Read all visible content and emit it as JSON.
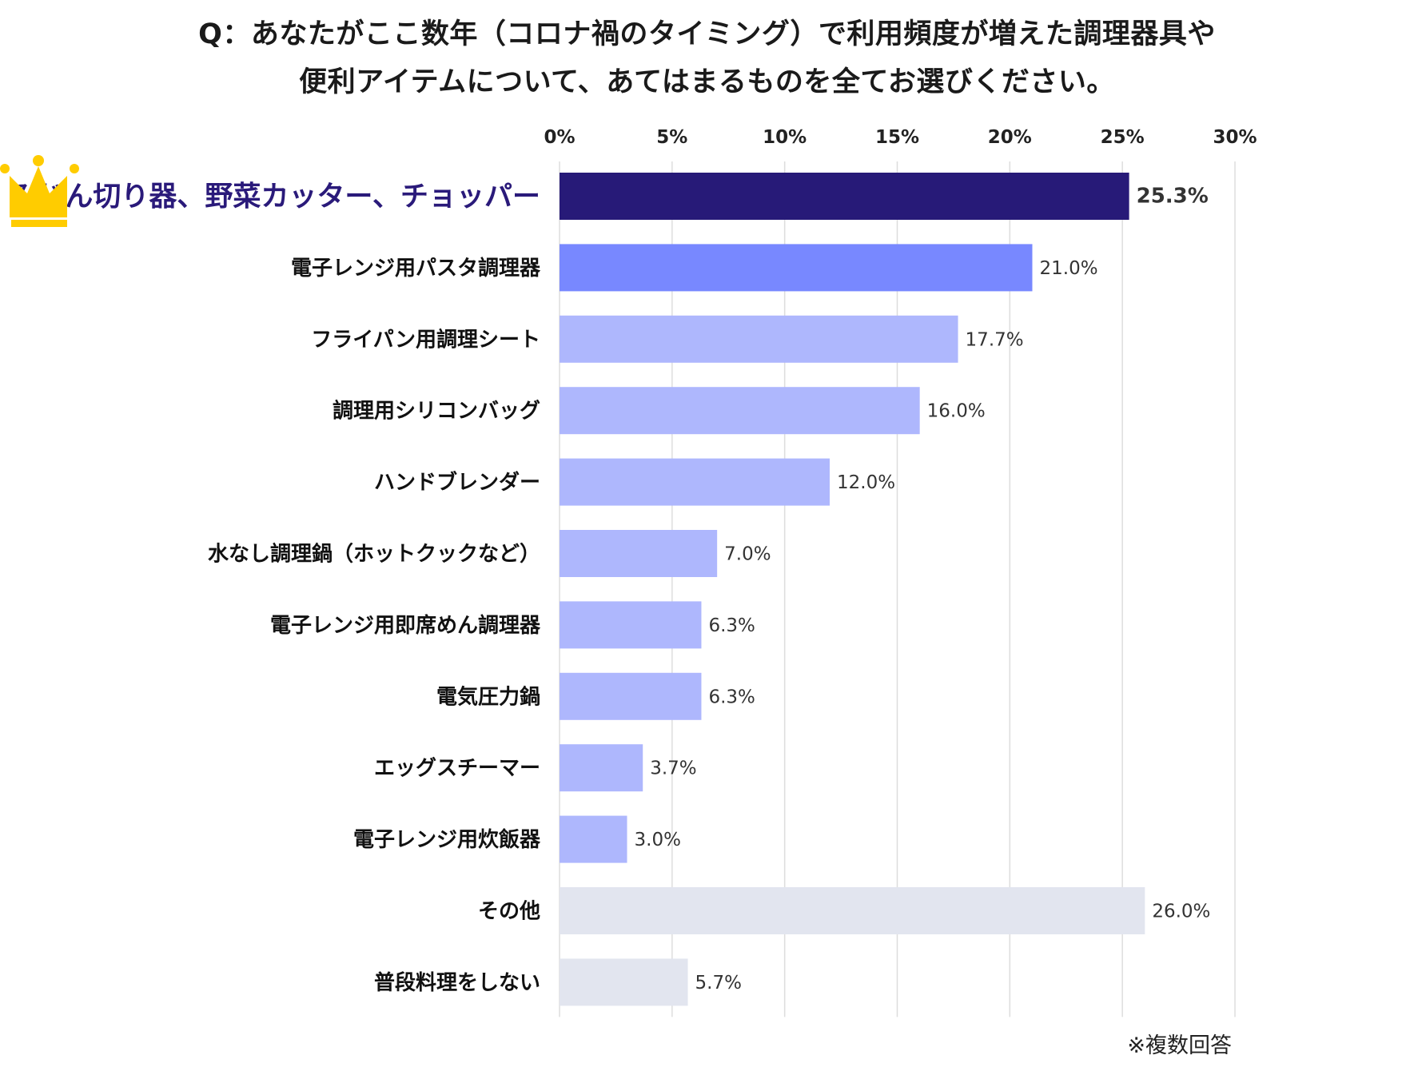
{
  "title_line1": "Q：あなたがここ数年（コロナ禍のタイミング）で利用頻度が増えた調理器具や",
  "title_line2": "便利アイテムについて、あてはまるものを全てお選びください。",
  "note": "※複数回答",
  "colors": {
    "top": "#271a78",
    "second": "#7888ff",
    "regular": "#aeb7fd",
    "other": "#e2e5ef",
    "grid": "#dddddd",
    "crown": "#ffcc00",
    "top_label": "#2a1a7a"
  },
  "chart_data": {
    "type": "bar",
    "orientation": "horizontal",
    "xlim": [
      0,
      30
    ],
    "xticks": [
      0,
      5,
      10,
      15,
      20,
      25,
      30
    ],
    "tick_labels": [
      "0%",
      "5%",
      "10%",
      "15%",
      "20%",
      "25%",
      "30%"
    ],
    "tick_label_position": "top",
    "grid": true,
    "categories": [
      "みじん切り器、野菜カッター、チョッパー",
      "電子レンジ用パスタ調理器",
      "フライパン用調理シート",
      "調理用シリコンバッグ",
      "ハンドブレンダー",
      "水なし調理鍋（ホットクックなど）",
      "電子レンジ用即席めん調理器",
      "電気圧力鍋",
      "エッグスチーマー",
      "電子レンジ用炊飯器",
      "その他",
      "普段料理をしない"
    ],
    "values": [
      25.3,
      21.0,
      17.7,
      16.0,
      12.0,
      7.0,
      6.3,
      6.3,
      3.7,
      3.0,
      26.0,
      5.7
    ],
    "value_labels": [
      "25.3%",
      "21.0%",
      "17.7%",
      "16.0%",
      "12.0%",
      "7.0%",
      "6.3%",
      "6.3%",
      "3.7%",
      "3.0%",
      "26.0%",
      "5.7%"
    ],
    "color_groups": [
      "top",
      "second",
      "regular",
      "regular",
      "regular",
      "regular",
      "regular",
      "regular",
      "regular",
      "regular",
      "other",
      "other"
    ],
    "highlight_icon": "crown-icon"
  }
}
